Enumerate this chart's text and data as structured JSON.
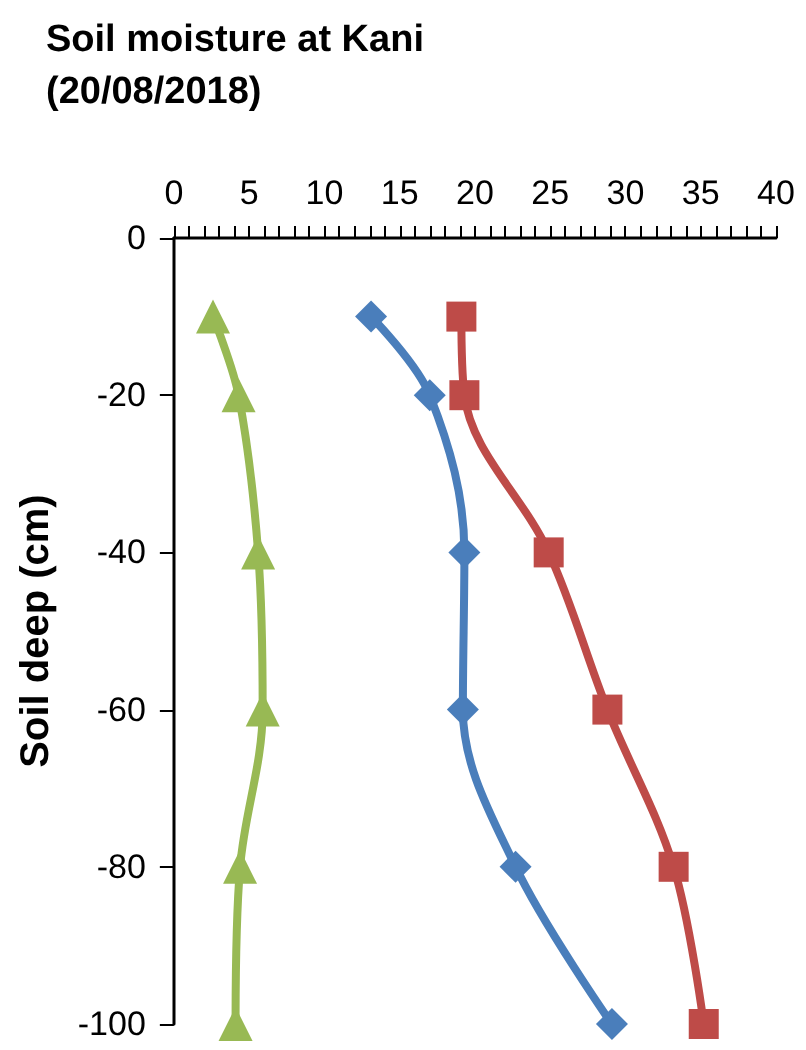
{
  "chart_data": {
    "type": "line",
    "title": "Soil moisture at Kani\n(20/08/2018)",
    "ylabel": "Soil deep (cm)",
    "xlim": [
      0,
      40
    ],
    "xticks": [
      0,
      5,
      10,
      15,
      20,
      25,
      30,
      35,
      40
    ],
    "ylim": [
      -100,
      0
    ],
    "yticks": [
      -100,
      -80,
      -60,
      -40,
      -20,
      0
    ],
    "series": [
      {
        "color": "#4a7ebb",
        "marker": "diamond",
        "x": [
          13.1,
          17.0,
          19.3,
          19.2,
          22.7,
          29.1
        ],
        "values": [
          -10,
          -20,
          -40,
          -60,
          -80,
          -100
        ]
      },
      {
        "color": "#be4b48",
        "marker": "square",
        "x": [
          19.1,
          19.3,
          24.9,
          28.8,
          33.2,
          35.2
        ],
        "values": [
          -10,
          -20,
          -40,
          -60,
          -80,
          -100
        ]
      },
      {
        "color": "#98b954",
        "marker": "triangle",
        "x": [
          2.6,
          4.3,
          5.6,
          5.9,
          4.4,
          4.1
        ],
        "values": [
          -10,
          -20,
          -40,
          -60,
          -80,
          -100
        ]
      }
    ]
  }
}
